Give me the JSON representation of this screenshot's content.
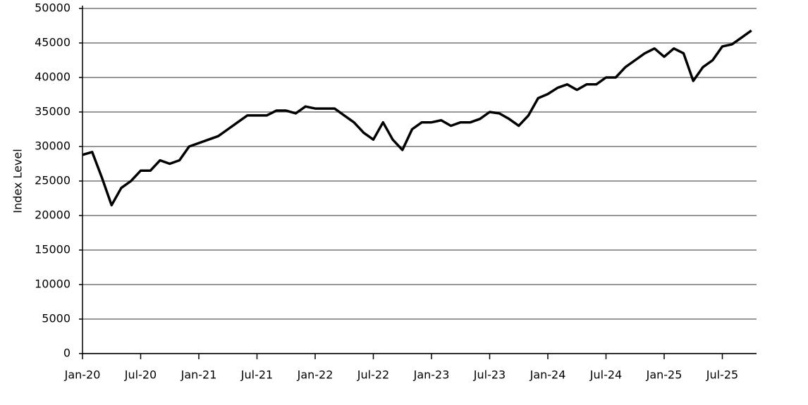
{
  "chart_data": {
    "type": "line",
    "y_label": "Index Level",
    "categories": [
      "Jan-20",
      null,
      null,
      null,
      null,
      null,
      "Jul-20",
      null,
      null,
      null,
      null,
      null,
      "Jan-21",
      null,
      null,
      null,
      null,
      null,
      "Jul-21",
      null,
      null,
      null,
      null,
      null,
      "Jan-22",
      null,
      null,
      null,
      null,
      null,
      "Jul-22",
      null,
      null,
      null,
      null,
      null,
      "Jan-23",
      null,
      null,
      null,
      null,
      null,
      "Jul-23",
      null,
      null,
      null,
      null,
      null,
      "Jan-24",
      null,
      null,
      null,
      null,
      null,
      "Jul-24",
      null,
      null,
      null,
      null,
      null,
      "Jan-25",
      null,
      null,
      null,
      null,
      null,
      "Jul-25",
      null,
      null,
      null
    ],
    "values": [
      28800,
      29200,
      25500,
      21500,
      24000,
      25000,
      26500,
      26500,
      28000,
      27500,
      28000,
      30000,
      30500,
      31000,
      31500,
      32500,
      33500,
      34500,
      34500,
      34500,
      35200,
      35200,
      34800,
      35800,
      35500,
      35500,
      35500,
      34500,
      33500,
      32000,
      31000,
      33500,
      31000,
      29500,
      32500,
      33500,
      33500,
      33800,
      33000,
      33500,
      33500,
      34000,
      35000,
      34800,
      34000,
      33000,
      34500,
      37000,
      37600,
      38500,
      39000,
      38200,
      39000,
      39000,
      40000,
      40000,
      41500,
      42500,
      43500,
      44200,
      43000,
      44200,
      43500,
      39500,
      41500,
      42500,
      44500,
      44800,
      45800,
      46800
    ],
    "color": "#000000",
    "ylim": [
      0,
      50000
    ],
    "yticks": [
      0,
      5000,
      10000,
      15000,
      20000,
      25000,
      30000,
      35000,
      40000,
      45000,
      50000
    ],
    "grid": true
  }
}
